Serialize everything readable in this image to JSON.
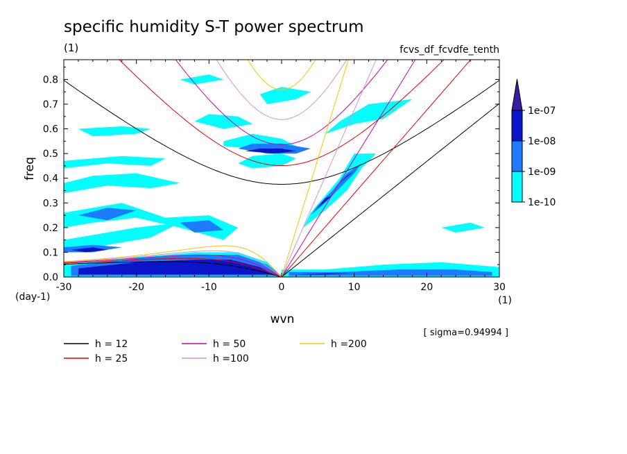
{
  "chart_data": {
    "type": "heatmap",
    "title": "specific humidity S-T power spectrum",
    "subtitle_left": "(1)",
    "subtitle_right": "fcvs_df_fcvdfe_tenth",
    "xlabel": "wvn",
    "ylabel": "freq",
    "x_unit": "(1)",
    "y_unit": "(day-1)",
    "xlim": [
      -30,
      30
    ],
    "ylim": [
      0,
      0.88
    ],
    "x_ticks": [
      -30,
      -20,
      -10,
      0,
      10,
      20,
      30
    ],
    "x_tick_labels": [
      "-30",
      "-20",
      "-10",
      "0",
      "10",
      "20",
      "30"
    ],
    "y_ticks": [
      0,
      0.1,
      0.2,
      0.3,
      0.4,
      0.5,
      0.6,
      0.7,
      0.8
    ],
    "y_tick_labels": [
      "0.0",
      "0.1",
      "0.2",
      "0.3",
      "0.4",
      "0.5",
      "0.6",
      "0.7",
      "0.8"
    ],
    "sigma_text": "[ sigma=0.94994 ]",
    "colorbar": {
      "levels": [
        "1e-10",
        "1e-09",
        "1e-08",
        "1e-07"
      ],
      "colors": [
        "#00ffff",
        "#1e7bff",
        "#0a14c8",
        "#3a1aa0"
      ]
    },
    "shading": [
      {
        "level": 1,
        "polys": [
          [
            [
              -30,
              0.05
            ],
            [
              -20,
              0.08
            ],
            [
              -12,
              0.1
            ],
            [
              -6,
              0.1
            ],
            [
              -2,
              0.06
            ],
            [
              0,
              0
            ],
            [
              -30,
              0
            ]
          ],
          [
            [
              -30,
              0.1
            ],
            [
              -24,
              0.13
            ],
            [
              -18,
              0.16
            ],
            [
              -14,
              0.22
            ],
            [
              -20,
              0.2
            ],
            [
              -26,
              0.17
            ],
            [
              -30,
              0.15
            ]
          ],
          [
            [
              -30,
              0.26
            ],
            [
              -26,
              0.28
            ],
            [
              -22,
              0.3
            ],
            [
              -16,
              0.24
            ],
            [
              -10,
              0.25
            ],
            [
              -6,
              0.2
            ],
            [
              -8,
              0.15
            ],
            [
              -14,
              0.2
            ],
            [
              -20,
              0.24
            ],
            [
              -26,
              0.22
            ],
            [
              -30,
              0.2
            ]
          ],
          [
            [
              -30,
              0.47
            ],
            [
              -22,
              0.49
            ],
            [
              -16,
              0.48
            ],
            [
              -18,
              0.45
            ],
            [
              -24,
              0.46
            ],
            [
              -30,
              0.44
            ]
          ],
          [
            [
              -30,
              0.38
            ],
            [
              -26,
              0.41
            ],
            [
              -20,
              0.42
            ],
            [
              -14,
              0.38
            ],
            [
              -18,
              0.36
            ],
            [
              -24,
              0.37
            ],
            [
              -30,
              0.34
            ]
          ],
          [
            [
              -28,
              0.6
            ],
            [
              -22,
              0.61
            ],
            [
              -18,
              0.6
            ],
            [
              -20,
              0.58
            ],
            [
              -26,
              0.57
            ]
          ],
          [
            [
              -10,
              0.66
            ],
            [
              -6,
              0.65
            ],
            [
              -4,
              0.62
            ],
            [
              -8,
              0.6
            ],
            [
              -12,
              0.63
            ]
          ],
          [
            [
              -8,
              0.55
            ],
            [
              -4,
              0.58
            ],
            [
              0,
              0.56
            ],
            [
              2,
              0.53
            ],
            [
              -4,
              0.52
            ],
            [
              -8,
              0.53
            ]
          ],
          [
            [
              -4,
              0.44
            ],
            [
              0,
              0.45
            ],
            [
              2,
              0.48
            ],
            [
              0,
              0.5
            ],
            [
              -4,
              0.49
            ],
            [
              -6,
              0.46
            ]
          ],
          [
            [
              3,
              0.2
            ],
            [
              6,
              0.27
            ],
            [
              9,
              0.35
            ],
            [
              11,
              0.44
            ],
            [
              13,
              0.5
            ],
            [
              10,
              0.5
            ],
            [
              8,
              0.4
            ],
            [
              6,
              0.33
            ],
            [
              4,
              0.26
            ]
          ],
          [
            [
              6,
              0.58
            ],
            [
              10,
              0.62
            ],
            [
              14,
              0.64
            ],
            [
              18,
              0.72
            ],
            [
              12,
              0.7
            ],
            [
              8,
              0.63
            ]
          ],
          [
            [
              0,
              0.03
            ],
            [
              6,
              0.03
            ],
            [
              14,
              0.05
            ],
            [
              22,
              0.06
            ],
            [
              30,
              0.04
            ],
            [
              30,
              0
            ],
            [
              0,
              0
            ]
          ],
          [
            [
              -2,
              0.7
            ],
            [
              2,
              0.72
            ],
            [
              4,
              0.75
            ],
            [
              0,
              0.77
            ],
            [
              -3,
              0.74
            ]
          ],
          [
            [
              22,
              0.2
            ],
            [
              26,
              0.22
            ],
            [
              28,
              0.2
            ],
            [
              24,
              0.18
            ]
          ],
          [
            [
              -14,
              0.8
            ],
            [
              -10,
              0.82
            ],
            [
              -8,
              0.8
            ],
            [
              -12,
              0.78
            ]
          ]
        ]
      },
      {
        "level": 2,
        "polys": [
          [
            [
              -29,
              0.045
            ],
            [
              -20,
              0.075
            ],
            [
              -12,
              0.09
            ],
            [
              -6,
              0.09
            ],
            [
              -2,
              0.05
            ],
            [
              0,
              0.005
            ],
            [
              -29,
              0.005
            ]
          ],
          [
            [
              -30,
              0.12
            ],
            [
              -26,
              0.13
            ],
            [
              -22,
              0.12
            ],
            [
              -26,
              0.1
            ],
            [
              -30,
              0.1
            ]
          ],
          [
            [
              -14,
              0.22
            ],
            [
              -10,
              0.23
            ],
            [
              -8,
              0.19
            ],
            [
              -12,
              0.18
            ]
          ],
          [
            [
              -28,
              0.25
            ],
            [
              -24,
              0.28
            ],
            [
              -20,
              0.27
            ],
            [
              -24,
              0.23
            ]
          ],
          [
            [
              -6,
              0.52
            ],
            [
              -2,
              0.5
            ],
            [
              2,
              0.5
            ],
            [
              4,
              0.52
            ],
            [
              0,
              0.54
            ],
            [
              -4,
              0.54
            ]
          ],
          [
            [
              4,
              0.25
            ],
            [
              6,
              0.3
            ],
            [
              8,
              0.36
            ],
            [
              10,
              0.42
            ],
            [
              11,
              0.46
            ],
            [
              9,
              0.42
            ],
            [
              7,
              0.35
            ],
            [
              5,
              0.29
            ]
          ],
          [
            [
              1,
              0.02
            ],
            [
              8,
              0.02
            ],
            [
              16,
              0.03
            ],
            [
              24,
              0.03
            ],
            [
              29,
              0.02
            ],
            [
              29,
              0.005
            ],
            [
              1,
              0.005
            ]
          ]
        ]
      },
      {
        "level": 3,
        "polys": [
          [
            [
              -28,
              0.035
            ],
            [
              -20,
              0.06
            ],
            [
              -12,
              0.07
            ],
            [
              -7,
              0.07
            ],
            [
              -3,
              0.04
            ],
            [
              -1,
              0.01
            ],
            [
              -28,
              0.01
            ]
          ],
          [
            [
              -29,
              0.11
            ],
            [
              -26,
              0.12
            ],
            [
              -24,
              0.11
            ],
            [
              -27,
              0.1
            ]
          ],
          [
            [
              -5,
              0.51
            ],
            [
              -1,
              0.5
            ],
            [
              2,
              0.51
            ],
            [
              0,
              0.52
            ],
            [
              -3,
              0.52
            ]
          ],
          [
            [
              5,
              0.28
            ],
            [
              7,
              0.33
            ],
            [
              6,
              0.32
            ]
          ],
          [
            [
              8,
              0.38
            ],
            [
              10,
              0.43
            ],
            [
              9,
              0.41
            ]
          ],
          [
            [
              2,
              0.01
            ],
            [
              6,
              0.015
            ],
            [
              10,
              0.015
            ],
            [
              6,
              0.01
            ]
          ]
        ]
      }
    ],
    "series": [
      {
        "name": "h = 12",
        "color": "#000000",
        "h": 12
      },
      {
        "name": "h = 25",
        "color": "#e00000",
        "h": 25
      },
      {
        "name": "h = 50",
        "color": "#d000a8",
        "h": 50
      },
      {
        "name": "h =100",
        "color": "#d890d8",
        "h": 100
      },
      {
        "name": "h =200",
        "color": "#f0c800",
        "h": 200
      }
    ],
    "legend": [
      {
        "label": "h = 12",
        "color": "#000000"
      },
      {
        "label": "h = 25",
        "color": "#e00000"
      },
      {
        "label": "h = 50",
        "color": "#d000a8"
      },
      {
        "label": "h =100",
        "color": "#d890d8"
      },
      {
        "label": "h =200",
        "color": "#f0c800"
      }
    ]
  }
}
